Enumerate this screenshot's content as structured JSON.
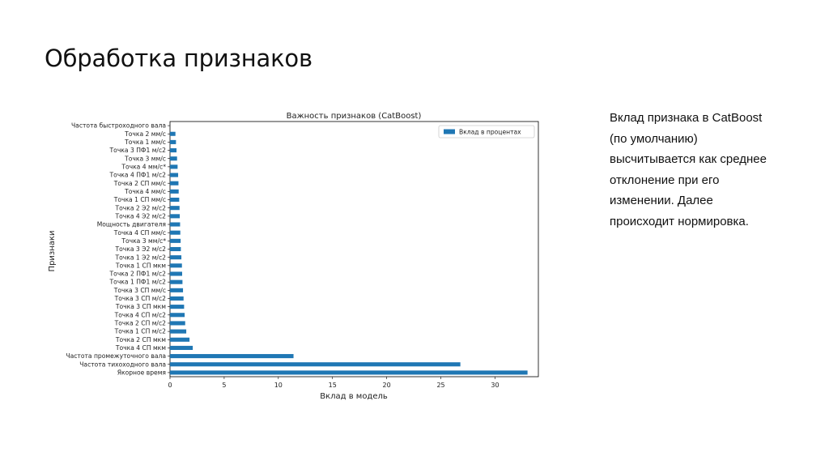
{
  "slide": {
    "title": "Обработка признаков",
    "description_lines": [
      "Вклад признака в CatBoost",
      "(по умолчанию)",
      "высчитывается как среднее",
      "отклонение при его",
      "изменении. Далее",
      "происходит нормировка."
    ]
  },
  "chart_data": {
    "type": "bar",
    "orientation": "horizontal",
    "title": "Важность признаков (CatBoost)",
    "xlabel": "Вклад в модель",
    "ylabel": "Признаки",
    "xlim": [
      0,
      34
    ],
    "xticks": [
      0,
      5,
      10,
      15,
      20,
      25,
      30
    ],
    "legend_position": "top-right",
    "grid": false,
    "categories": [
      "Частота быстроходного вала",
      "Точка 2 мм/с",
      "Точка 1 мм/с",
      "Точка 3 ПФ1 м/с2",
      "Точка 3 мм/с",
      "Точка 4 мм/с*",
      "Точка 4 ПФ1 м/с2",
      "Точка 2 СП мм/с",
      "Точка 4 мм/с",
      "Точка 1 СП мм/с",
      "Точка 2 Э2 м/с2",
      "Точка 4 Э2 м/с2",
      "Мощность двигателя",
      "Точка 4 СП мм/с",
      "Точка 3 мм/с*",
      "Точка 3 Э2 м/с2",
      "Точка 1 Э2 м/с2",
      "Точка 1 СП мкм",
      "Точка 2 ПФ1 м/с2",
      "Точка 1 ПФ1 м/с2",
      "Точка 3 СП мм/с",
      "Точка 3 СП м/с2",
      "Точка 3 СП мкм",
      "Точка 4 СП м/с2",
      "Точка 2 СП м/с2",
      "Точка 1 СП м/с2",
      "Точка 2 СП мкм",
      "Точка 4 СП мкм",
      "Частота промежуточного вала",
      "Частота тихоходного вала",
      "Якорное время"
    ],
    "series": [
      {
        "name": "Вклад в процентах",
        "color": "#1f77b4",
        "values": [
          0.0,
          0.5,
          0.55,
          0.6,
          0.65,
          0.7,
          0.75,
          0.78,
          0.8,
          0.85,
          0.88,
          0.9,
          0.93,
          0.95,
          0.98,
          1.0,
          1.05,
          1.1,
          1.12,
          1.15,
          1.2,
          1.25,
          1.3,
          1.35,
          1.4,
          1.5,
          1.8,
          2.1,
          11.4,
          26.8,
          33.0
        ]
      }
    ]
  }
}
